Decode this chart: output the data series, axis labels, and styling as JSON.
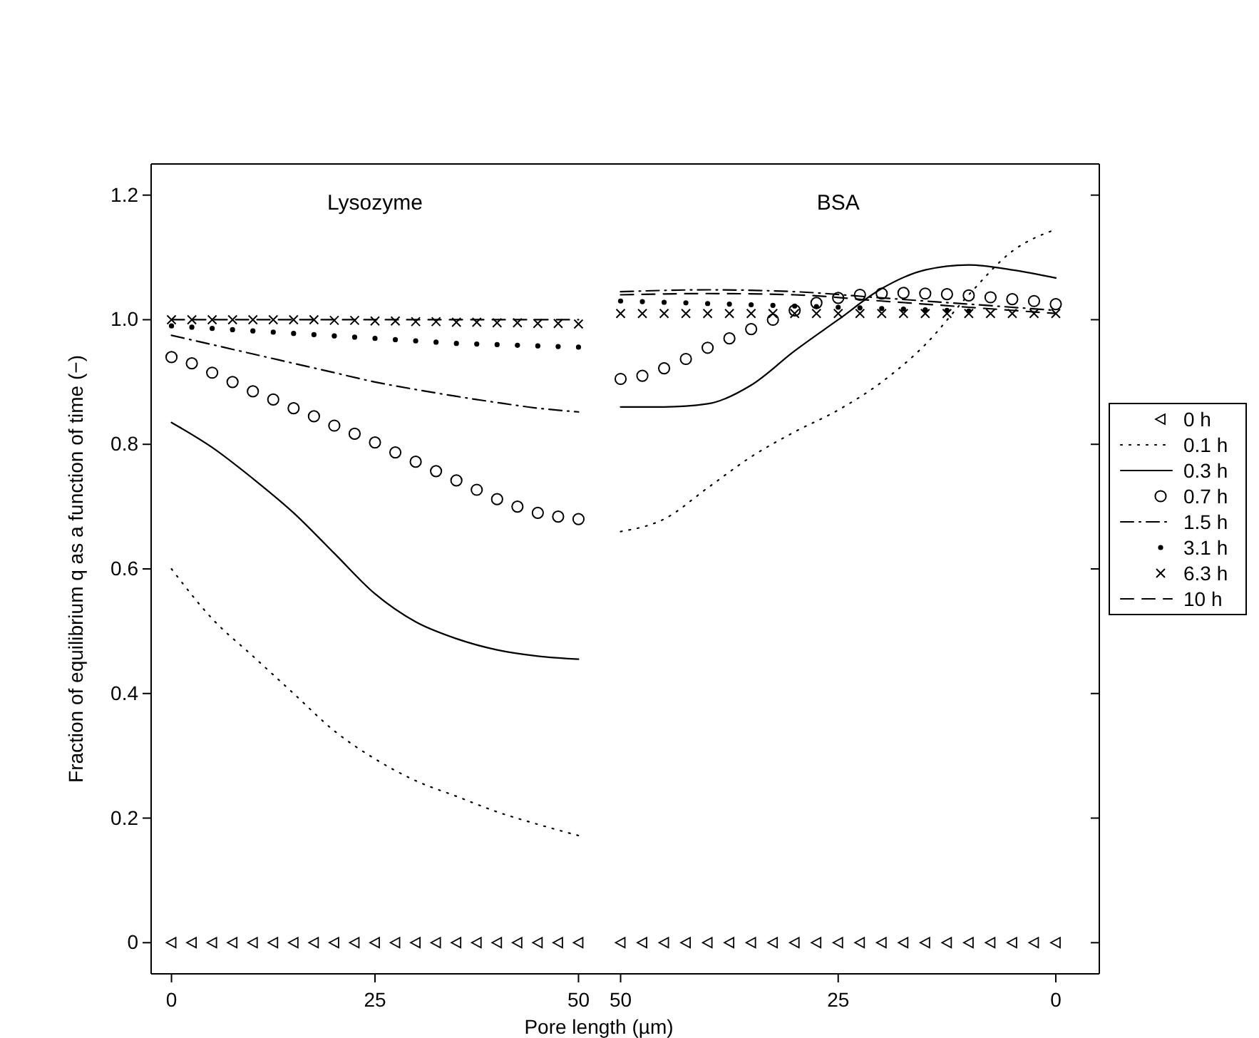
{
  "chart_data": [
    {
      "type": "line",
      "title": "Lysozyme",
      "xlabel": "Pore length (µm)",
      "ylabel": "Fraction of equilibrium q as a function of time (−)",
      "xlim": [
        -2.5,
        52.5
      ],
      "xticks": [
        0,
        25,
        50
      ],
      "ylim": [
        -0.05,
        1.25
      ],
      "yticks": [
        0,
        0.2,
        0.4,
        0.6,
        0.8,
        {
          "value": 1,
          "label": "1.0"
        },
        1.2
      ],
      "legend": false,
      "series": [
        {
          "type": "scatter",
          "color": "#000000",
          "marker": "triangle",
          "x": [
            0,
            2.5,
            5,
            7.5,
            10,
            12.5,
            15,
            17.5,
            20,
            22.5,
            25,
            27.5,
            30,
            32.5,
            35,
            37.5,
            40,
            42.5,
            45,
            47.5,
            50
          ],
          "values": [
            0,
            0,
            0,
            0,
            0,
            0,
            0,
            0,
            0,
            0,
            0,
            0,
            0,
            0,
            0,
            0,
            0,
            0,
            0,
            0,
            0
          ]
        },
        {
          "color": "#000000",
          "line_style": "dotted",
          "x": [
            0,
            5,
            10,
            15,
            20,
            25,
            30,
            35,
            40,
            45,
            50
          ],
          "values": [
            0.6,
            0.52,
            0.46,
            0.4,
            0.34,
            0.295,
            0.26,
            0.235,
            0.21,
            0.19,
            0.172
          ]
        },
        {
          "color": "#000000",
          "line_style": "solid",
          "x": [
            0,
            5,
            10,
            15,
            20,
            25,
            30,
            35,
            40,
            45,
            50
          ],
          "values": [
            0.835,
            0.795,
            0.745,
            0.69,
            0.625,
            0.56,
            0.515,
            0.488,
            0.47,
            0.46,
            0.455
          ]
        },
        {
          "type": "scatter",
          "color": "#000000",
          "marker": "circle",
          "x": [
            0,
            2.5,
            5,
            7.5,
            10,
            12.5,
            15,
            17.5,
            20,
            22.5,
            25,
            27.5,
            30,
            32.5,
            35,
            37.5,
            40,
            42.5,
            45,
            47.5,
            50
          ],
          "values": [
            0.94,
            0.93,
            0.915,
            0.9,
            0.885,
            0.872,
            0.858,
            0.845,
            0.83,
            0.817,
            0.803,
            0.787,
            0.772,
            0.757,
            0.742,
            0.727,
            0.712,
            0.7,
            0.69,
            0.684,
            0.68
          ]
        },
        {
          "color": "#000000",
          "line_style": "dashdot",
          "x": [
            0,
            5,
            10,
            15,
            20,
            25,
            30,
            35,
            40,
            45,
            50
          ],
          "values": [
            0.975,
            0.96,
            0.945,
            0.93,
            0.915,
            0.9,
            0.888,
            0.877,
            0.867,
            0.858,
            0.852
          ]
        },
        {
          "type": "scatter",
          "color": "#000000",
          "marker": "circle",
          "x": [
            0,
            2.5,
            5,
            7.5,
            10,
            12.5,
            15,
            17.5,
            20,
            22.5,
            25,
            27.5,
            30,
            32.5,
            35,
            37.5,
            40,
            42.5,
            45,
            47.5,
            50
          ],
          "values": [
            0.99,
            0.988,
            0.986,
            0.984,
            0.982,
            0.98,
            0.978,
            0.976,
            0.974,
            0.972,
            0.97,
            0.968,
            0.966,
            0.964,
            0.962,
            0.961,
            0.96,
            0.959,
            0.958,
            0.957,
            0.956
          ]
        },
        {
          "type": "scatter",
          "color": "#000000",
          "marker": "cross",
          "x": [
            0,
            2.5,
            5,
            7.5,
            10,
            12.5,
            15,
            17.5,
            20,
            22.5,
            25,
            27.5,
            30,
            32.5,
            35,
            37.5,
            40,
            42.5,
            45,
            47.5,
            50
          ],
          "values": [
            1,
            1,
            1,
            1,
            1,
            1,
            1,
            1,
            0.999,
            0.999,
            0.998,
            0.998,
            0.997,
            0.997,
            0.996,
            0.996,
            0.995,
            0.995,
            0.994,
            0.994,
            0.993
          ]
        },
        {
          "color": "#000000",
          "line_style": "dashed",
          "x": [
            0,
            10,
            20,
            30,
            40,
            50
          ],
          "values": [
            1,
            1,
            1,
            1,
            1,
            1
          ]
        }
      ]
    },
    {
      "type": "line",
      "title": "BSA",
      "xlim": [
        52.5,
        -5
      ],
      "xticks": [
        50,
        25,
        0
      ],
      "ylim": [
        -0.05,
        1.25
      ],
      "yticks": [
        0,
        0.2,
        0.4,
        0.6,
        0.8,
        1,
        1.2
      ],
      "tick_labels": "x",
      "legend": "right",
      "series": [
        {
          "name": "0 h",
          "type": "scatter",
          "color": "#000000",
          "marker": "triangle",
          "x": [
            50,
            47.5,
            45,
            42.5,
            40,
            37.5,
            35,
            32.5,
            30,
            27.5,
            25,
            22.5,
            20,
            17.5,
            15,
            12.5,
            10,
            7.5,
            5,
            2.5,
            0
          ],
          "values": [
            0,
            0,
            0,
            0,
            0,
            0,
            0,
            0,
            0,
            0,
            0,
            0,
            0,
            0,
            0,
            0,
            0,
            0,
            0,
            0,
            0
          ]
        },
        {
          "name": "0.1 h",
          "color": "#000000",
          "line_style": "dotted",
          "x": [
            50,
            45,
            40,
            35,
            30,
            25,
            20,
            15,
            10,
            5,
            0
          ],
          "values": [
            0.66,
            0.68,
            0.73,
            0.78,
            0.82,
            0.855,
            0.9,
            0.96,
            1.04,
            1.11,
            1.145
          ]
        },
        {
          "name": "0.3 h",
          "color": "#000000",
          "line_style": "solid",
          "x": [
            50,
            45,
            40,
            35,
            30,
            25,
            20,
            15,
            10,
            5,
            0
          ],
          "values": [
            0.86,
            0.86,
            0.865,
            0.895,
            0.95,
            1,
            1.05,
            1.08,
            1.088,
            1.08,
            1.067
          ]
        },
        {
          "name": "0.7 h",
          "type": "scatter",
          "color": "#000000",
          "marker": "circle",
          "x": [
            50,
            47.5,
            45,
            42.5,
            40,
            37.5,
            35,
            32.5,
            30,
            27.5,
            25,
            22.5,
            20,
            17.5,
            15,
            12.5,
            10,
            7.5,
            5,
            2.5,
            0
          ],
          "values": [
            0.905,
            0.91,
            0.922,
            0.937,
            0.955,
            0.97,
            0.985,
            1,
            1.015,
            1.027,
            1.035,
            1.04,
            1.042,
            1.043,
            1.042,
            1.041,
            1.039,
            1.036,
            1.033,
            1.03,
            1.025
          ]
        },
        {
          "name": "1.5 h",
          "color": "#000000",
          "line_style": "dashdot",
          "x": [
            50,
            40,
            30,
            20,
            10,
            0
          ],
          "values": [
            1.045,
            1.048,
            1.045,
            1.035,
            1.025,
            1.015
          ]
        },
        {
          "name": "3.1 h",
          "type": "scatter",
          "color": "#000000",
          "marker": "circle",
          "x": [
            50,
            47.5,
            45,
            42.5,
            40,
            37.5,
            35,
            32.5,
            30,
            27.5,
            25,
            22.5,
            20,
            17.5,
            15,
            12.5,
            10
          ],
          "values": [
            1.03,
            1.029,
            1.028,
            1.027,
            1.026,
            1.025,
            1.024,
            1.023,
            1.022,
            1.021,
            1.02,
            1.019,
            1.018,
            1.017,
            1.016,
            1.015,
            1.014
          ]
        },
        {
          "name": "6.3 h",
          "type": "scatter",
          "color": "#000000",
          "marker": "cross",
          "x": [
            50,
            47.5,
            45,
            42.5,
            40,
            37.5,
            35,
            32.5,
            30,
            27.5,
            25,
            22.5,
            20,
            17.5,
            15,
            12.5,
            10,
            7.5,
            5,
            2.5,
            0
          ],
          "values": [
            1.01,
            1.01,
            1.01,
            1.01,
            1.01,
            1.01,
            1.01,
            1.01,
            1.01,
            1.01,
            1.01,
            1.01,
            1.01,
            1.01,
            1.01,
            1.01,
            1.01,
            1.01,
            1.01,
            1.01,
            1.01
          ]
        },
        {
          "name": "10 h",
          "color": "#000000",
          "line_style": "dashed",
          "x": [
            50,
            40,
            30,
            20,
            10,
            0
          ],
          "values": [
            1.04,
            1.042,
            1.04,
            1.03,
            1.02,
            1.01
          ]
        }
      ]
    }
  ]
}
